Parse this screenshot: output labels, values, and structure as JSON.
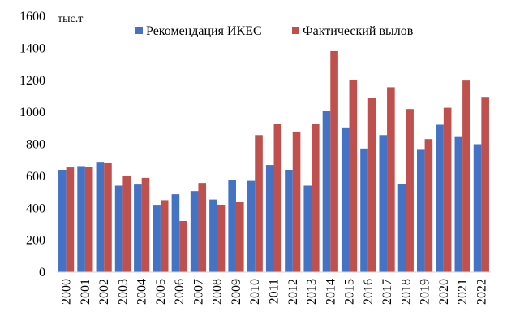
{
  "chart_data": {
    "type": "bar",
    "unit_label": "тыс.т",
    "categories": [
      "2000",
      "2001",
      "2002",
      "2003",
      "2004",
      "2005",
      "2006",
      "2007",
      "2008",
      "2009",
      "2010",
      "2011",
      "2012",
      "2013",
      "2014",
      "2015",
      "2016",
      "2017",
      "2018",
      "2019",
      "2020",
      "2021",
      "2022"
    ],
    "series": [
      {
        "name": "Рекомендация ИКЕС",
        "color": "#4472C4",
        "values": [
          640,
          663,
          690,
          541,
          548,
          421,
          487,
          507,
          454,
          578,
          571,
          670,
          640,
          541,
          1009,
          905,
          773,
          857,
          551,
          770,
          922,
          850,
          800
        ]
      },
      {
        "name": "Фактический вылов",
        "color": "#C0504D",
        "values": [
          655,
          660,
          686,
          600,
          590,
          450,
          320,
          558,
          422,
          440,
          857,
          929,
          879,
          929,
          1382,
          1201,
          1088,
          1156,
          1020,
          832,
          1028,
          1198,
          1096
        ]
      }
    ],
    "y_ticks": [
      "0",
      "200",
      "400",
      "600",
      "800",
      "1000",
      "1200",
      "1400",
      "1600"
    ],
    "ylim": [
      0,
      1600
    ],
    "grid": false,
    "legend_position": "top-center"
  }
}
